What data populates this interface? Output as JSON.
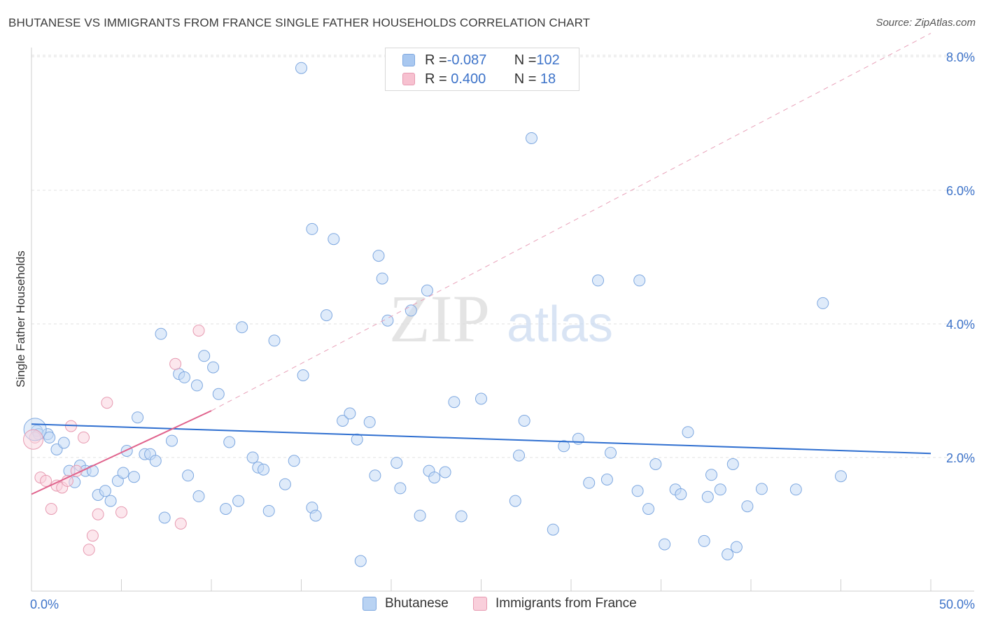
{
  "title": "BHUTANESE VS IMMIGRANTS FROM FRANCE SINGLE FATHER HOUSEHOLDS CORRELATION CHART",
  "source": "Source: ZipAtlas.com",
  "watermark": {
    "zip": "ZIP",
    "atlas": "atlas"
  },
  "legend": {
    "rows": [
      {
        "r_label": "R = ",
        "r_value": "-0.087",
        "n_label": "N = ",
        "n_value": "102",
        "color": "#a9c8f0",
        "border": "#7ea8e0"
      },
      {
        "r_label": "R = ",
        "r_value": " 0.400",
        "n_label": "N = ",
        "n_value": " 18",
        "color": "#f7c1d0",
        "border": "#e79ab1"
      }
    ]
  },
  "bottom_legend": {
    "items": [
      {
        "label": "Bhutanese",
        "color": "#b9d3f3",
        "border": "#7ea8e0"
      },
      {
        "label": "Immigrants from France",
        "color": "#f9cfdb",
        "border": "#e79ab1"
      }
    ]
  },
  "chart_data": {
    "type": "scatter",
    "title": "BHUTANESE VS IMMIGRANTS FROM FRANCE SINGLE FATHER HOUSEHOLDS CORRELATION CHART",
    "xlabel": "",
    "ylabel": "Single Father Households",
    "xlim": [
      0,
      50
    ],
    "ylim": [
      0,
      8.4
    ],
    "x_tick_labels": [
      {
        "value": 0,
        "label": "0.0%"
      },
      {
        "value": 50,
        "label": "50.0%"
      }
    ],
    "y_tick_labels": [
      {
        "value": 2,
        "label": "2.0%"
      },
      {
        "value": 4,
        "label": "4.0%"
      },
      {
        "value": 6,
        "label": "6.0%"
      },
      {
        "value": 8,
        "label": "8.0%"
      }
    ],
    "grid": true,
    "series": [
      {
        "name": "Bhutanese",
        "color": "#7ea8e0",
        "fill": "#c5dbf6",
        "R": -0.087,
        "N": 102,
        "trend": {
          "x": [
            0,
            50
          ],
          "y": [
            2.5,
            2.06
          ],
          "color": "#2f6fd0",
          "dashed": false
        },
        "points": [
          [
            0.3,
            2.4
          ],
          [
            0.4,
            2.35
          ],
          [
            0.9,
            2.35
          ],
          [
            1.0,
            2.3
          ],
          [
            1.4,
            2.12
          ],
          [
            1.8,
            2.22
          ],
          [
            2.1,
            1.8
          ],
          [
            2.4,
            1.63
          ],
          [
            2.7,
            1.88
          ],
          [
            3.0,
            1.8
          ],
          [
            3.4,
            1.8
          ],
          [
            3.7,
            1.44
          ],
          [
            4.1,
            1.5
          ],
          [
            4.4,
            1.35
          ],
          [
            4.8,
            1.65
          ],
          [
            5.1,
            1.77
          ],
          [
            5.3,
            2.1
          ],
          [
            5.7,
            1.71
          ],
          [
            5.9,
            2.6
          ],
          [
            6.3,
            2.05
          ],
          [
            6.6,
            2.05
          ],
          [
            6.9,
            1.95
          ],
          [
            7.2,
            3.85
          ],
          [
            7.4,
            1.1
          ],
          [
            7.8,
            2.25
          ],
          [
            8.2,
            3.25
          ],
          [
            8.5,
            3.2
          ],
          [
            8.7,
            1.73
          ],
          [
            9.2,
            3.08
          ],
          [
            9.3,
            1.42
          ],
          [
            9.6,
            3.52
          ],
          [
            10.1,
            3.35
          ],
          [
            10.4,
            2.95
          ],
          [
            10.8,
            1.23
          ],
          [
            11.0,
            2.23
          ],
          [
            11.5,
            1.35
          ],
          [
            11.7,
            3.95
          ],
          [
            12.3,
            2.0
          ],
          [
            12.6,
            1.85
          ],
          [
            12.9,
            1.82
          ],
          [
            13.2,
            1.2
          ],
          [
            13.5,
            3.75
          ],
          [
            14.1,
            1.6
          ],
          [
            14.6,
            1.95
          ],
          [
            15.1,
            3.23
          ],
          [
            15.6,
            1.25
          ],
          [
            15.8,
            1.13
          ],
          [
            15.0,
            7.83
          ],
          [
            15.6,
            5.42
          ],
          [
            16.4,
            4.13
          ],
          [
            16.8,
            5.27
          ],
          [
            17.3,
            2.55
          ],
          [
            17.7,
            2.66
          ],
          [
            18.1,
            2.27
          ],
          [
            18.3,
            0.45
          ],
          [
            18.8,
            2.53
          ],
          [
            19.3,
            5.02
          ],
          [
            19.1,
            1.73
          ],
          [
            19.5,
            4.68
          ],
          [
            19.8,
            4.05
          ],
          [
            20.3,
            1.92
          ],
          [
            20.5,
            1.54
          ],
          [
            21.1,
            4.2
          ],
          [
            21.6,
            1.13
          ],
          [
            22.0,
            4.5
          ],
          [
            22.1,
            1.8
          ],
          [
            22.4,
            1.7
          ],
          [
            23.0,
            1.78
          ],
          [
            23.5,
            2.83
          ],
          [
            23.9,
            1.12
          ],
          [
            25.0,
            2.88
          ],
          [
            26.9,
            1.35
          ],
          [
            27.1,
            2.03
          ],
          [
            27.4,
            2.55
          ],
          [
            27.8,
            6.78
          ],
          [
            29.0,
            0.92
          ],
          [
            29.6,
            2.17
          ],
          [
            30.4,
            2.28
          ],
          [
            31.0,
            1.62
          ],
          [
            31.5,
            4.65
          ],
          [
            32.0,
            1.67
          ],
          [
            32.2,
            2.07
          ],
          [
            33.8,
            4.65
          ],
          [
            33.7,
            1.5
          ],
          [
            34.3,
            1.23
          ],
          [
            34.7,
            1.9
          ],
          [
            35.2,
            0.7
          ],
          [
            35.8,
            1.52
          ],
          [
            36.1,
            1.45
          ],
          [
            36.5,
            2.38
          ],
          [
            37.4,
            0.75
          ],
          [
            37.6,
            1.41
          ],
          [
            37.8,
            1.74
          ],
          [
            38.3,
            1.52
          ],
          [
            38.7,
            0.55
          ],
          [
            39.0,
            1.9
          ],
          [
            39.2,
            0.66
          ],
          [
            39.8,
            1.27
          ],
          [
            40.6,
            1.53
          ],
          [
            42.5,
            1.52
          ],
          [
            44.0,
            4.31
          ],
          [
            45.0,
            1.72
          ]
        ]
      },
      {
        "name": "Immigrants from France",
        "color": "#e79ab1",
        "fill": "#f9d3de",
        "R": 0.4,
        "N": 18,
        "trend": {
          "x": [
            0,
            10
          ],
          "y": [
            1.45,
            2.7
          ],
          "x_dash_to": 50,
          "y_dash_to": 8.35,
          "color": "#e0628c",
          "dashed_extension": true
        },
        "points": [
          [
            0.2,
            2.3
          ],
          [
            0.5,
            1.7
          ],
          [
            0.8,
            1.65
          ],
          [
            1.1,
            1.23
          ],
          [
            1.4,
            1.58
          ],
          [
            1.7,
            1.55
          ],
          [
            2.0,
            1.65
          ],
          [
            2.2,
            2.47
          ],
          [
            2.5,
            1.8
          ],
          [
            2.9,
            2.3
          ],
          [
            3.2,
            0.62
          ],
          [
            3.4,
            0.83
          ],
          [
            3.7,
            1.15
          ],
          [
            4.2,
            2.82
          ],
          [
            5.0,
            1.18
          ],
          [
            8.0,
            3.4
          ],
          [
            8.3,
            1.01
          ],
          [
            9.3,
            3.9
          ]
        ]
      }
    ]
  }
}
